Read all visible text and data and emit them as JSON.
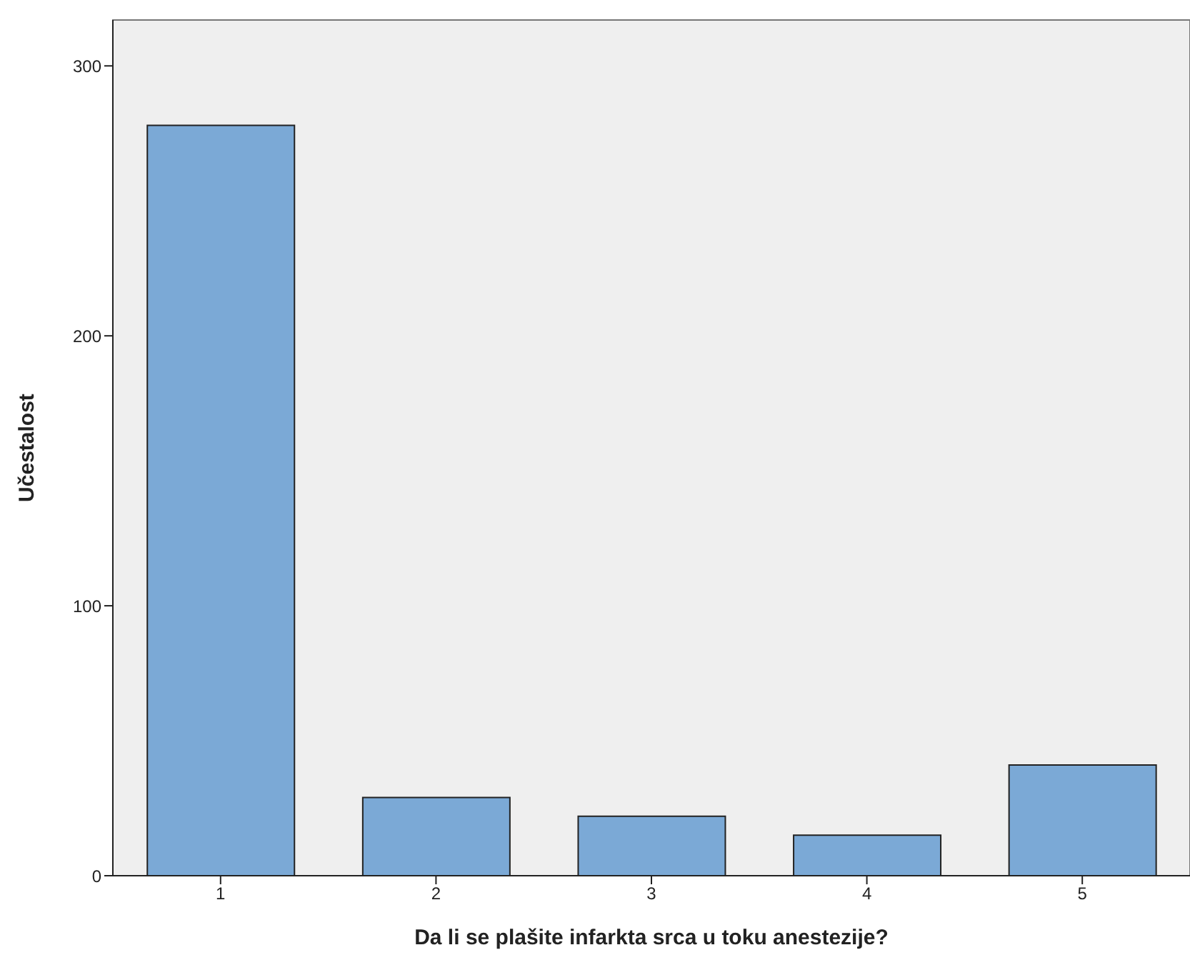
{
  "chart_data": {
    "type": "bar",
    "xlabel": "Da li se plašite infarkta srca u toku anestezije?",
    "ylabel": "Učestalost",
    "categories": [
      "1",
      "2",
      "3",
      "4",
      "5"
    ],
    "values": [
      278,
      29,
      22,
      15,
      41
    ],
    "color": "#7ba9d6",
    "ylim": [
      0,
      317
    ],
    "yticks": [
      0,
      100,
      200,
      300
    ]
  }
}
